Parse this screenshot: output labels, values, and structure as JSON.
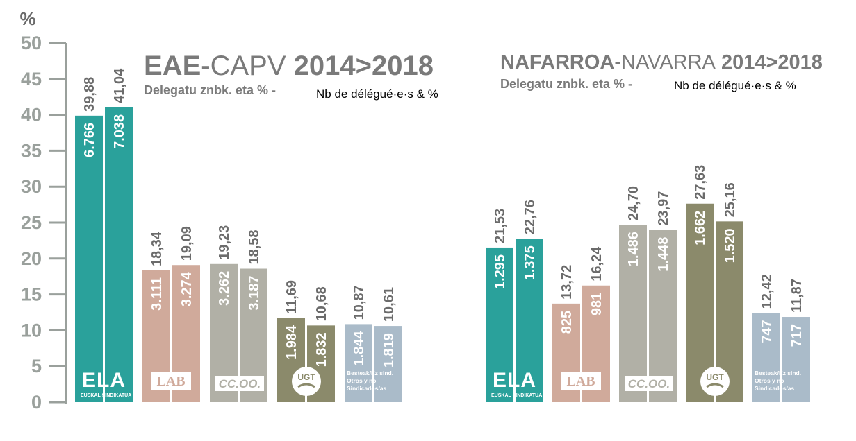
{
  "y_unit": "%",
  "y_ticks": [
    0,
    5,
    10,
    15,
    20,
    25,
    30,
    35,
    40,
    45,
    50
  ],
  "colors": {
    "ELA": "#2aa19b",
    "LAB": "#d0aa9b",
    "CCOO": "#b1b0a6",
    "UGT": "#8b8a6b",
    "Otros": "#aabbc9",
    "axis": "#9aa09c",
    "labels": "#6b6b6b"
  },
  "chart_data": [
    {
      "type": "bar",
      "title_bold_1": "EAE-",
      "title_light": "CAPV",
      "title_bold_2": " 2014>2018",
      "subtitle": "Delegatu znbk. eta % -",
      "subtitle_fr": "Nb de délégué·e·s & %",
      "series": [
        "2014",
        "2018"
      ],
      "ylim": [
        0,
        50
      ],
      "groups": [
        {
          "union": "ELA",
          "logo_text": "ELA",
          "logo_sub": "EUSKAL SINDIKATUA",
          "percent": [
            "39,88",
            "41,04"
          ],
          "percent_values": [
            39.88,
            41.04
          ],
          "delegates": [
            "6.766",
            "7.038"
          ]
        },
        {
          "union": "LAB",
          "logo_text": "LAB",
          "percent": [
            "18,34",
            "19,09"
          ],
          "percent_values": [
            18.34,
            19.09
          ],
          "delegates": [
            "3.111",
            "3.274"
          ]
        },
        {
          "union": "CCOO",
          "logo_text": "CC.OO.",
          "percent": [
            "19,23",
            "18,58"
          ],
          "percent_values": [
            19.23,
            18.58
          ],
          "delegates": [
            "3.262",
            "3.187"
          ]
        },
        {
          "union": "UGT",
          "logo_text": "UGT",
          "percent": [
            "11,69",
            "10,68"
          ],
          "percent_values": [
            11.69,
            10.68
          ],
          "delegates": [
            "1.984",
            "1.832"
          ]
        },
        {
          "union": "Otros",
          "logo_lines": [
            "Besteak/Ez sind.",
            "Otros y  no",
            "Sindicados/as"
          ],
          "percent": [
            "10,87",
            "10,61"
          ],
          "percent_values": [
            10.87,
            10.61
          ],
          "delegates": [
            "1.844",
            "1.819"
          ]
        }
      ]
    },
    {
      "type": "bar",
      "title_bold_1": "NAFARROA-",
      "title_light": "NAVARRA",
      "title_bold_2": " 2014>2018",
      "subtitle": "Delegatu znbk. eta % -",
      "subtitle_fr": "Nb de délégué·e·s & %",
      "series": [
        "2014",
        "2018"
      ],
      "ylim": [
        0,
        50
      ],
      "groups": [
        {
          "union": "ELA",
          "logo_text": "ELA",
          "logo_sub": "EUSKAL SINDIKATUA",
          "percent": [
            "21,53",
            "22,76"
          ],
          "percent_values": [
            21.53,
            22.76
          ],
          "delegates": [
            "1.295",
            "1.375"
          ]
        },
        {
          "union": "LAB",
          "logo_text": "LAB",
          "percent": [
            "13,72",
            "16,24"
          ],
          "percent_values": [
            13.72,
            16.24
          ],
          "delegates": [
            "825",
            "981"
          ]
        },
        {
          "union": "CCOO",
          "logo_text": "CC.OO.",
          "percent": [
            "24,70",
            "23,97"
          ],
          "percent_values": [
            24.7,
            23.97
          ],
          "delegates": [
            "1.486",
            "1.448"
          ]
        },
        {
          "union": "UGT",
          "logo_text": "UGT",
          "percent": [
            "27,63",
            "25,16"
          ],
          "percent_values": [
            27.63,
            25.16
          ],
          "delegates": [
            "1.662",
            "1.520"
          ]
        },
        {
          "union": "Otros",
          "logo_lines": [
            "Besteak/Ez sind.",
            "Otros y  no",
            "Sindicados/as"
          ],
          "percent": [
            "12,42",
            "11,87"
          ],
          "percent_values": [
            12.42,
            11.87
          ],
          "delegates": [
            "747",
            "717"
          ]
        }
      ]
    }
  ]
}
